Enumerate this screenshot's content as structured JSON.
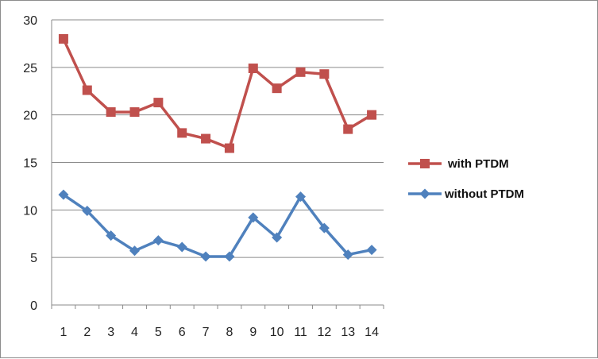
{
  "chart_data": {
    "type": "line",
    "categories": [
      "1",
      "2",
      "3",
      "4",
      "5",
      "6",
      "7",
      "8",
      "9",
      "10",
      "11",
      "12",
      "13",
      "14"
    ],
    "series": [
      {
        "name": "with PTDM",
        "color": "#c0504d",
        "marker": "square",
        "values": [
          28.0,
          22.6,
          20.3,
          20.3,
          21.3,
          18.1,
          17.5,
          16.5,
          24.9,
          22.8,
          24.5,
          24.3,
          18.5,
          20.0
        ]
      },
      {
        "name": "without PTDM",
        "color": "#4f81bd",
        "marker": "diamond",
        "values": [
          11.6,
          9.9,
          7.3,
          5.7,
          6.8,
          6.1,
          5.1,
          5.1,
          9.2,
          7.1,
          11.4,
          8.1,
          5.3,
          5.8
        ]
      }
    ],
    "ylim": [
      0,
      30
    ],
    "yticks": [
      0,
      5,
      10,
      15,
      20,
      25,
      30
    ],
    "grid": true,
    "legend_position": "right",
    "title": "",
    "xlabel": "",
    "ylabel": ""
  }
}
